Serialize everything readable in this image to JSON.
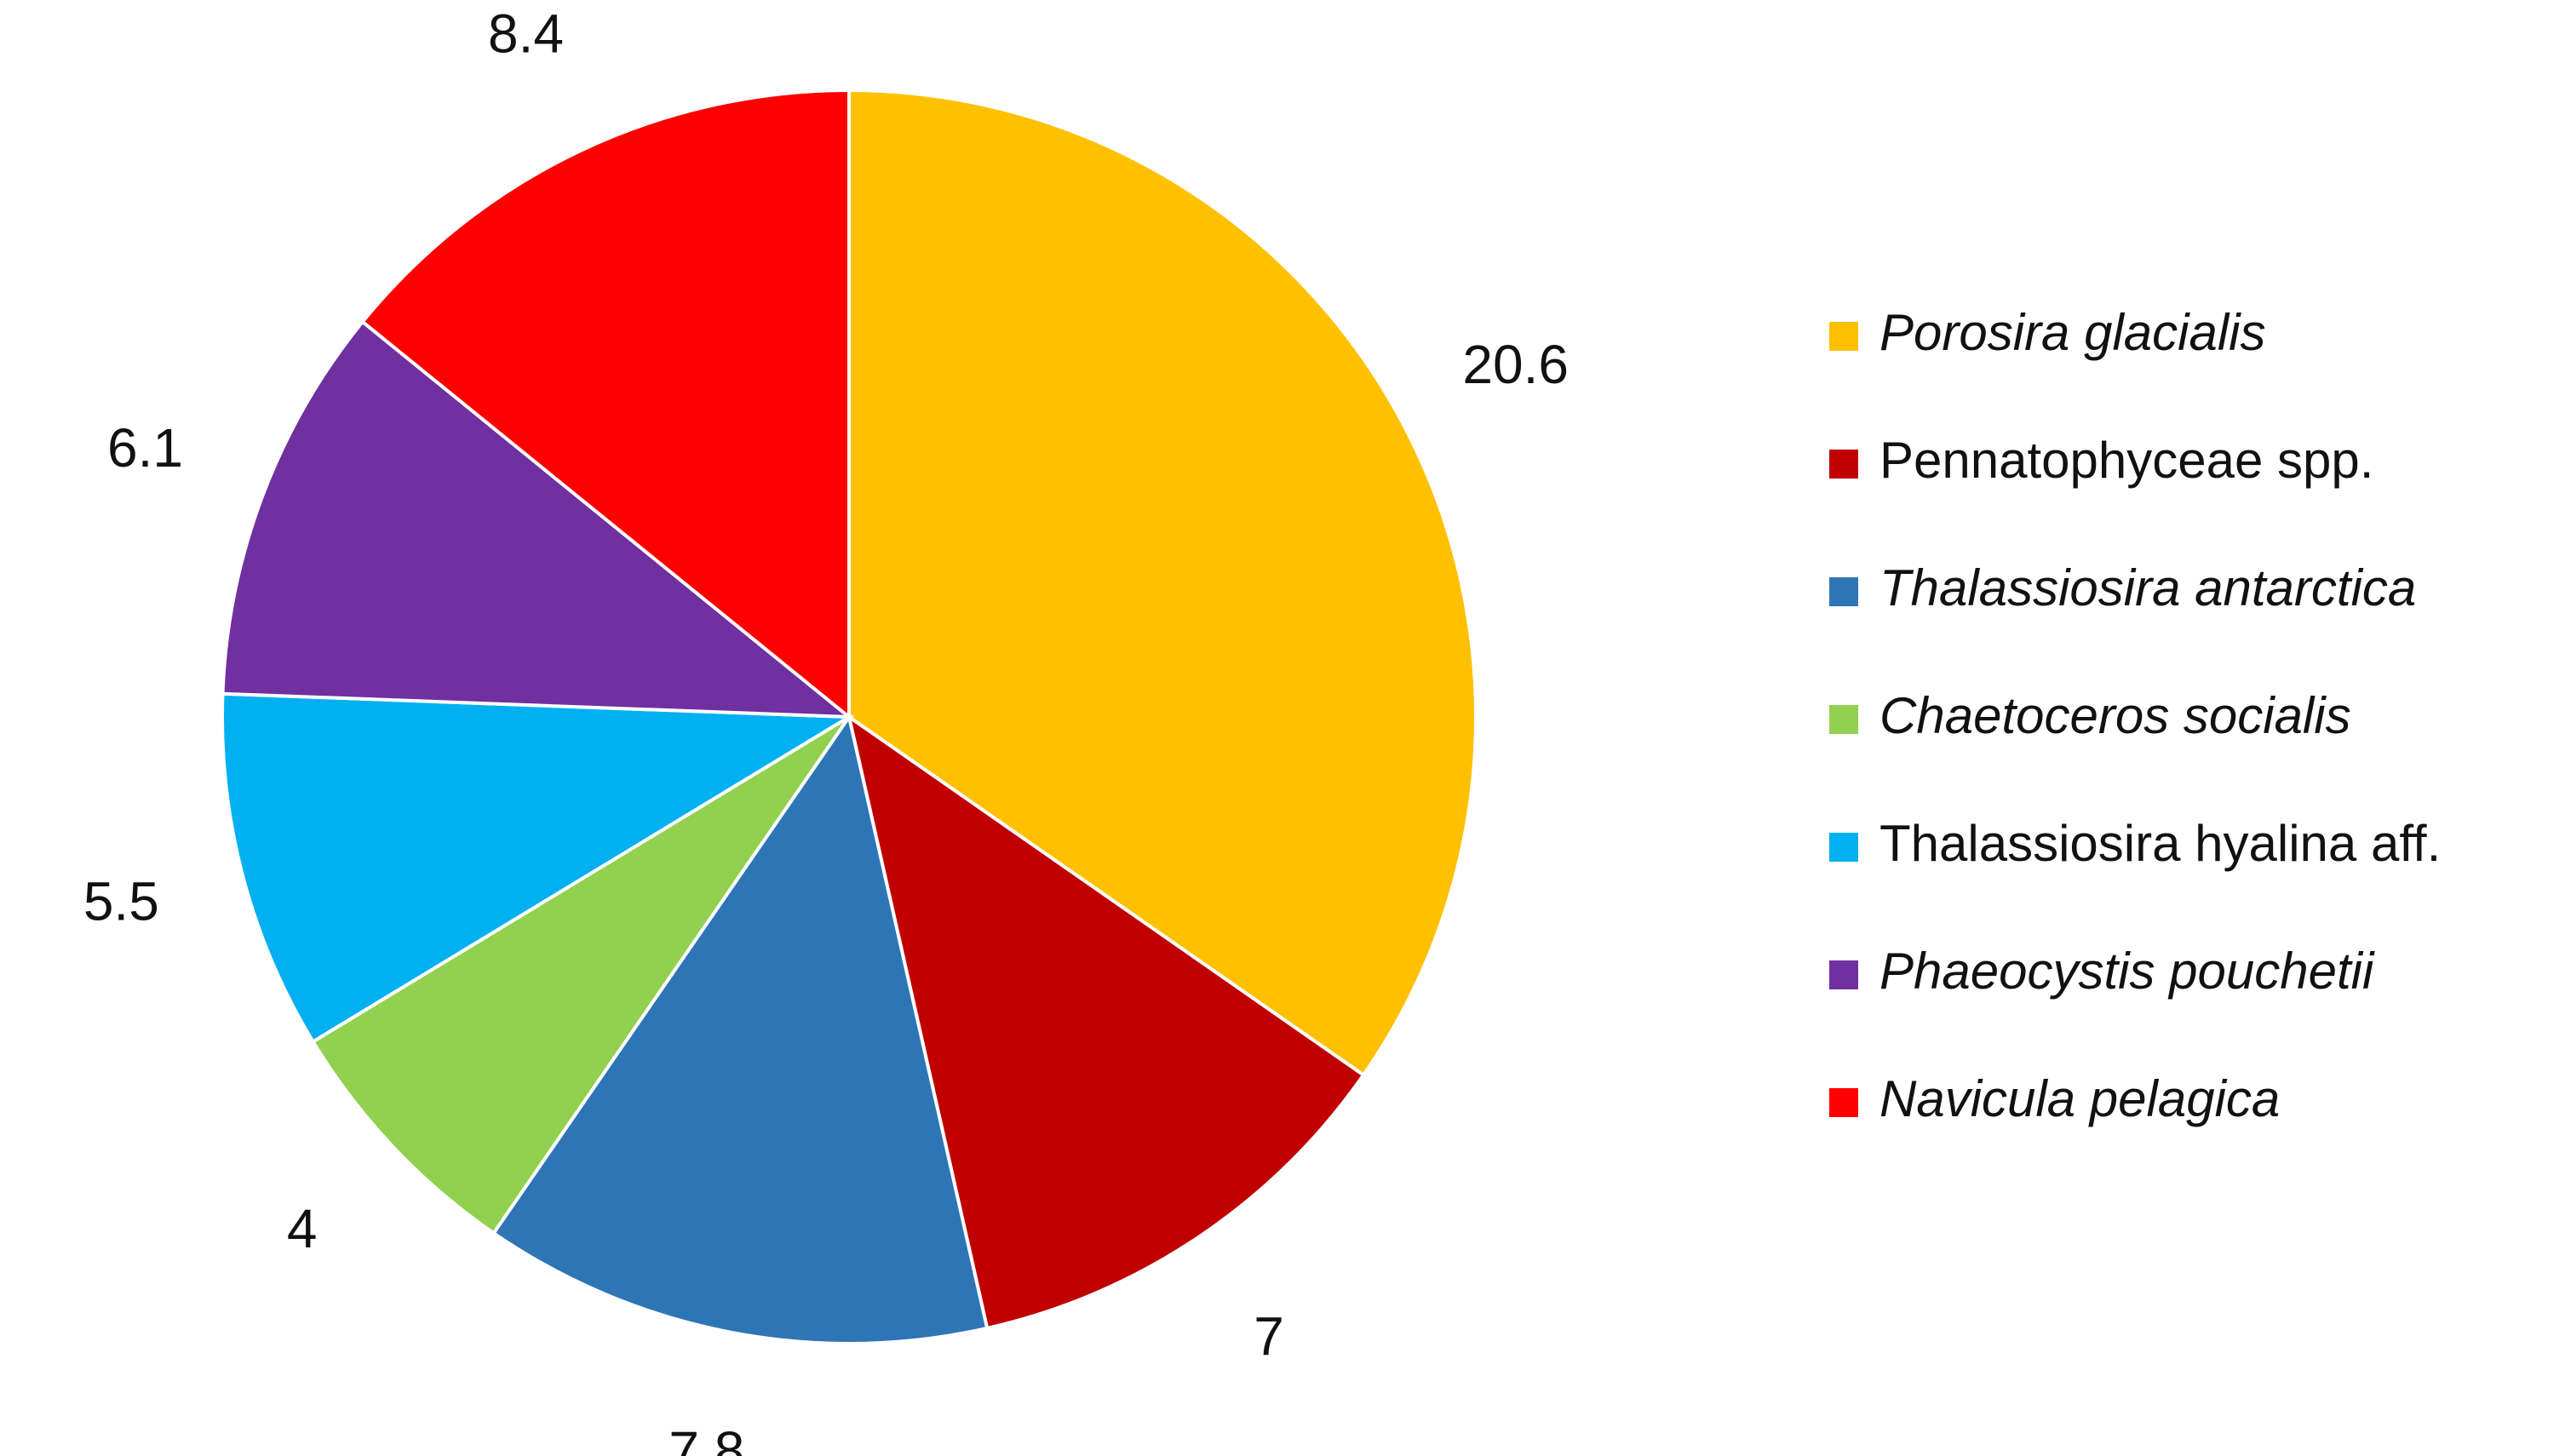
{
  "chart_data": {
    "type": "pie",
    "categories": [
      "Porosira glacialis",
      "Pennatophyceae spp.",
      "Thalassiosira antarctica",
      "Chaetoceros socialis",
      "Thalassiosira hyalina aff.",
      "Phaeocystis pouchetii",
      "Navicula pelagica"
    ],
    "values": [
      20.6,
      7,
      7.8,
      4,
      5.5,
      6.1,
      8.4
    ],
    "colors": [
      "#FFC000",
      "#C00000",
      "#2E75B6",
      "#92D050",
      "#00B0F0",
      "#7030A0",
      "#FF0000"
    ],
    "italic": [
      true,
      false,
      true,
      true,
      false,
      true,
      true
    ],
    "legend": "right"
  }
}
